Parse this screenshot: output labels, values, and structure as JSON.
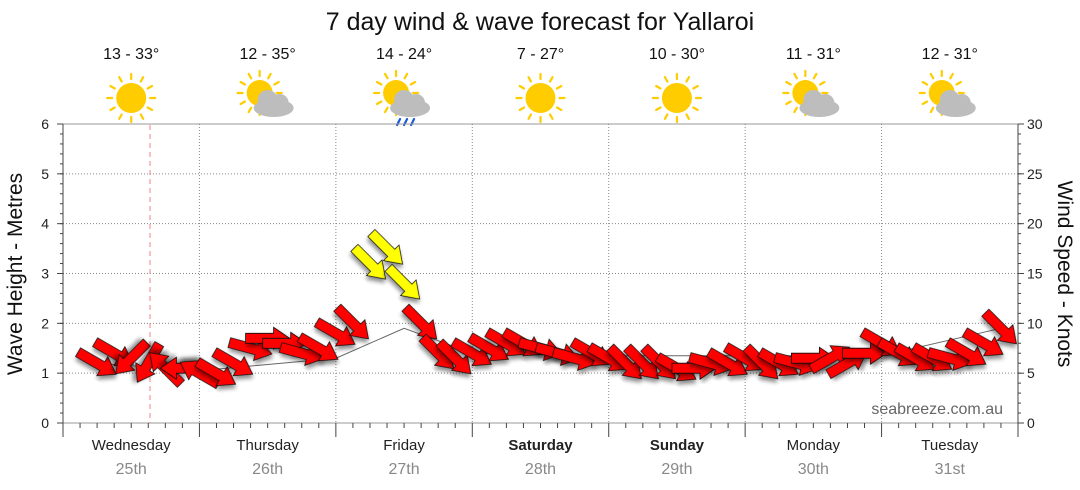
{
  "title": "7 day wind & wave forecast for Yallaroi",
  "watermark": "seabreeze.com.au",
  "days": [
    {
      "name": "Wednesday",
      "date": "25th",
      "temp": "13 - 33°",
      "weather": "sunny-icon",
      "bold": false
    },
    {
      "name": "Thursday",
      "date": "26th",
      "temp": "12 - 35°",
      "weather": "partly-cloudy-icon",
      "bold": false
    },
    {
      "name": "Friday",
      "date": "27th",
      "temp": "14 - 24°",
      "weather": "rain-shower-icon",
      "bold": false
    },
    {
      "name": "Saturday",
      "date": "28th",
      "temp": "7 - 27°",
      "weather": "sunny-icon",
      "bold": true
    },
    {
      "name": "Sunday",
      "date": "29th",
      "temp": "10 - 30°",
      "weather": "sunny-icon",
      "bold": true
    },
    {
      "name": "Monday",
      "date": "30th",
      "temp": "11 - 31°",
      "weather": "partly-cloudy-icon",
      "bold": false
    },
    {
      "name": "Tuesday",
      "date": "31st",
      "temp": "12 - 31°",
      "weather": "partly-cloudy-icon",
      "bold": false
    }
  ],
  "colors": {
    "wind_strong": "#ffff00",
    "wind_normal": "#ff0000",
    "arrow_outline": "#111111",
    "grid": "#888888",
    "now_line": "#f08080",
    "sun": "#ffcc00",
    "cloud": "#bdbdbd",
    "rain": "#1e5bd6"
  },
  "chart_data": {
    "type": "line",
    "title": "7 day wind & wave forecast for Yallaroi",
    "y_left": {
      "label": "Wave Height - Metres",
      "range": [
        0,
        6
      ],
      "ticks": [
        0,
        1,
        2,
        3,
        4,
        5,
        6
      ]
    },
    "y_right": {
      "label": "Wind Speed - Knots",
      "range": [
        0,
        30
      ],
      "ticks": [
        0,
        5,
        10,
        15,
        20,
        25,
        30
      ]
    },
    "x_ticks": [
      "Wednesday 25th",
      "Thursday 26th",
      "Friday 27th",
      "Saturday 28th",
      "Sunday 29th",
      "Monday 30th",
      "Tuesday 31st"
    ],
    "grid": true,
    "series": [
      {
        "name": "Wind Speed - Knots",
        "x": [
          0.25,
          0.375,
          0.5,
          0.625,
          0.75,
          0.875,
          1.0,
          1.125,
          1.25,
          1.375,
          1.5,
          1.625,
          1.75,
          1.875,
          2.0,
          2.125,
          2.25,
          2.375,
          2.5,
          2.625,
          2.75,
          2.875,
          3.0,
          3.125,
          3.25,
          3.375,
          3.5,
          3.625,
          3.75,
          3.875,
          4.0,
          4.125,
          4.25,
          4.375,
          4.5,
          4.625,
          4.75,
          4.875,
          5.0,
          5.125,
          5.25,
          5.375,
          5.5,
          5.625,
          5.75,
          5.875,
          6.0,
          6.125,
          6.25,
          6.375,
          6.5,
          6.625,
          6.75,
          6.875
        ],
        "values": [
          6,
          7,
          6.5,
          6,
          5.5,
          5.5,
          5,
          5,
          6,
          7.5,
          8.5,
          8,
          7,
          7.5,
          9,
          10,
          16,
          17.5,
          14,
          10,
          7,
          6.5,
          7,
          7.5,
          8,
          8,
          7.5,
          7,
          6.5,
          7,
          6.5,
          6,
          6,
          6,
          5.5,
          5.5,
          6,
          6,
          6.5,
          6,
          6,
          6,
          6.5,
          6.5,
          6,
          7,
          8,
          7,
          6.5,
          6.5,
          6.5,
          7,
          8,
          9.5
        ],
        "directions_deg": [
          60,
          60,
          315,
          330,
          225,
          270,
          240,
          60,
          60,
          75,
          90,
          90,
          75,
          60,
          60,
          45,
          45,
          45,
          45,
          45,
          45,
          45,
          60,
          60,
          60,
          60,
          75,
          75,
          75,
          60,
          60,
          45,
          45,
          45,
          60,
          90,
          75,
          60,
          60,
          45,
          60,
          75,
          90,
          120,
          120,
          90,
          60,
          60,
          60,
          60,
          75,
          60,
          60,
          45
        ]
      },
      {
        "name": "Wave Height - Metres",
        "x": [
          0.25,
          1.0,
          2.0,
          2.5,
          3.0,
          4.0,
          5.0,
          6.0,
          6.875
        ],
        "values": [
          1.2,
          1.05,
          1.3,
          1.9,
          1.4,
          1.35,
          1.35,
          1.35,
          1.9
        ]
      }
    ]
  }
}
